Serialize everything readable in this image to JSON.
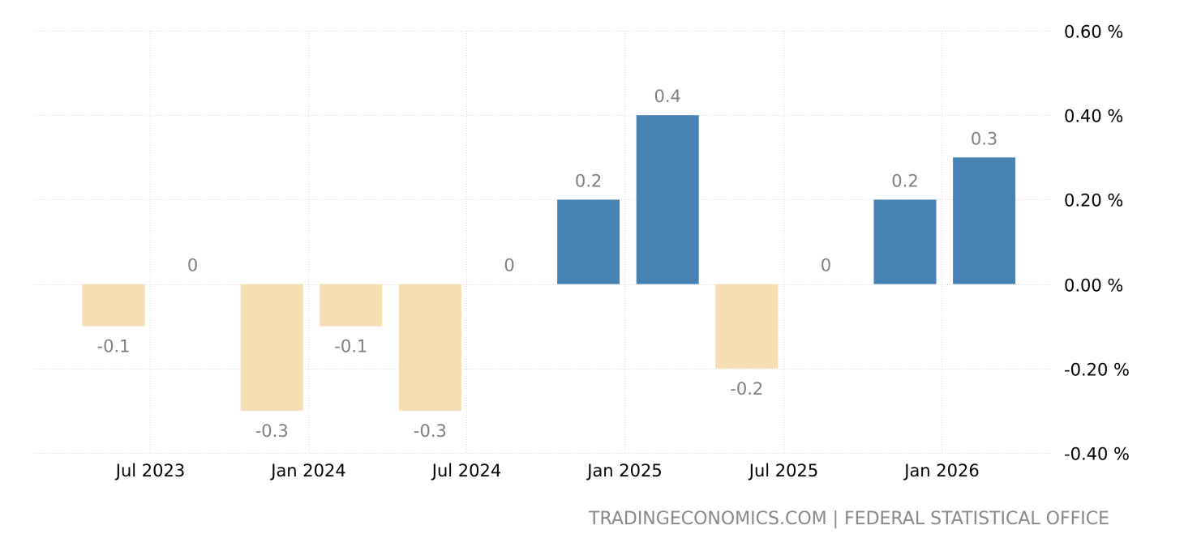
{
  "source_text": "TRADINGECONOMICS.COM | FEDERAL STATISTICAL OFFICE",
  "colors": {
    "positive": "#4682b4",
    "negative": "#f5deb3",
    "grid": "#d9d9d9",
    "value_label": "#808080",
    "axis_label": "#000000"
  },
  "chart_data": {
    "type": "bar",
    "title": "",
    "xlabel": "",
    "ylabel": "",
    "ylim": [
      -0.4,
      0.6
    ],
    "grid": true,
    "y_ticks": [
      {
        "value": 0.6,
        "label": "0.60 %"
      },
      {
        "value": 0.4,
        "label": "0.40 %"
      },
      {
        "value": 0.2,
        "label": "0.20 %"
      },
      {
        "value": 0.0,
        "label": "0.00 %"
      },
      {
        "value": -0.2,
        "label": "-0.20 %"
      },
      {
        "value": -0.4,
        "label": "-0.40 %"
      }
    ],
    "x_ticks": [
      {
        "label": "Jul 2023",
        "index": 1
      },
      {
        "label": "Jan 2024",
        "index": 3
      },
      {
        "label": "Jul 2024",
        "index": 5
      },
      {
        "label": "Jan 2025",
        "index": 7
      },
      {
        "label": "Jul 2025",
        "index": 9
      },
      {
        "label": "Jan 2026",
        "index": 11
      }
    ],
    "bars": [
      {
        "value": -0.1,
        "label": "-0.1"
      },
      {
        "value": 0.0,
        "label": "0"
      },
      {
        "value": -0.3,
        "label": "-0.3"
      },
      {
        "value": -0.1,
        "label": "-0.1"
      },
      {
        "value": -0.3,
        "label": "-0.3"
      },
      {
        "value": 0.0,
        "label": "0"
      },
      {
        "value": 0.2,
        "label": "0.2"
      },
      {
        "value": 0.4,
        "label": "0.4"
      },
      {
        "value": -0.2,
        "label": "-0.2"
      },
      {
        "value": 0.0,
        "label": "0"
      },
      {
        "value": 0.2,
        "label": "0.2"
      },
      {
        "value": 0.3,
        "label": "0.3"
      }
    ]
  }
}
